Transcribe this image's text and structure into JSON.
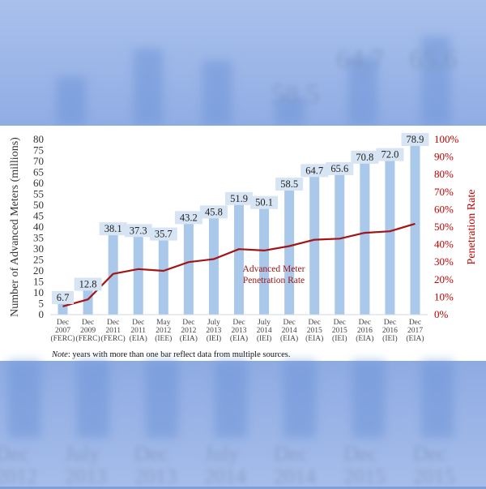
{
  "chart_data": {
    "type": "bar",
    "categories": [
      [
        "Dec",
        "2007",
        "(FERC)"
      ],
      [
        "Dec",
        "2009",
        "(FERC)"
      ],
      [
        "Dec",
        "2011",
        "(FERC)"
      ],
      [
        "Dec",
        "2011",
        "(EIA)"
      ],
      [
        "May",
        "2012",
        "(IEE)"
      ],
      [
        "Dec",
        "2012",
        "(EIA)"
      ],
      [
        "July",
        "2013",
        "(IEI)"
      ],
      [
        "Dec",
        "2013",
        "(EIA)"
      ],
      [
        "July",
        "2014",
        "(IEI)"
      ],
      [
        "Dec",
        "2014",
        "(EIA)"
      ],
      [
        "Dec",
        "2015",
        "(EIA)"
      ],
      [
        "Dec",
        "2015",
        "(IEI)"
      ],
      [
        "Dec",
        "2016",
        "(EIA)"
      ],
      [
        "Dec",
        "2016",
        "(IEI)"
      ],
      [
        "Dec",
        "2017",
        "(EIA)"
      ]
    ],
    "values": [
      6.7,
      12.8,
      38.1,
      37.3,
      35.7,
      43.2,
      45.8,
      51.9,
      50.1,
      58.5,
      64.7,
      65.6,
      70.8,
      72.0,
      78.9
    ],
    "value_labels": [
      "6.7",
      "12.8",
      "38.1",
      "37.3",
      "35.7",
      "43.2",
      "45.8",
      "51.9",
      "50.1",
      "58.5",
      "64.7",
      "65.6",
      "70.8",
      "72.0",
      "78.9"
    ],
    "series": [
      {
        "values": [
          6.7,
          12.8,
          38.1,
          37.3,
          35.7,
          43.2,
          45.8,
          51.9,
          50.1,
          58.5,
          64.7,
          65.6,
          70.8,
          72.0,
          78.9
        ]
      },
      {
        "name": "Advanced Meter Penetration Rate",
        "axis": "right",
        "type": "line",
        "values": [
          4.7,
          8.7,
          23.3,
          26.0,
          25.0,
          30.0,
          31.7,
          37.4,
          36.6,
          39.1,
          42.8,
          43.4,
          46.7,
          47.6,
          51.9
        ]
      }
    ],
    "ylabel": "Number of Advanced Meters (millions)",
    "y2label": "Penetration Rate",
    "ylim": [
      0,
      80
    ],
    "y2lim": [
      0,
      100
    ],
    "yticks": [
      "0",
      "5",
      "10",
      "15",
      "20",
      "25",
      "30",
      "35",
      "40",
      "45",
      "50",
      "55",
      "60",
      "65",
      "70",
      "75",
      "80"
    ],
    "y2ticks": [
      "0%",
      "10%",
      "20%",
      "30%",
      "40%",
      "50%",
      "60%",
      "70%",
      "80%",
      "90%",
      "100%"
    ],
    "line_label": [
      "Advanced Meter",
      "Penetration Rate"
    ],
    "grid": false,
    "colors": {
      "bar": "#a9c8ea",
      "line": "#a31515",
      "axis_right": "#c00000",
      "label_box": "#d6e4f3"
    }
  },
  "note": {
    "prefix": "Note",
    "text": ": years with more than one bar reflect data from multiple sources."
  },
  "background": {
    "top_values": [
      "58.5",
      "64.7",
      "65.6"
    ],
    "bottom_months": [
      "Dec",
      "July",
      "Dec",
      "July",
      "Dec",
      "Dec",
      "Dec"
    ],
    "bottom_years": [
      "2012",
      "2013",
      "2013",
      "2014",
      "2014",
      "2015",
      "2015"
    ]
  }
}
